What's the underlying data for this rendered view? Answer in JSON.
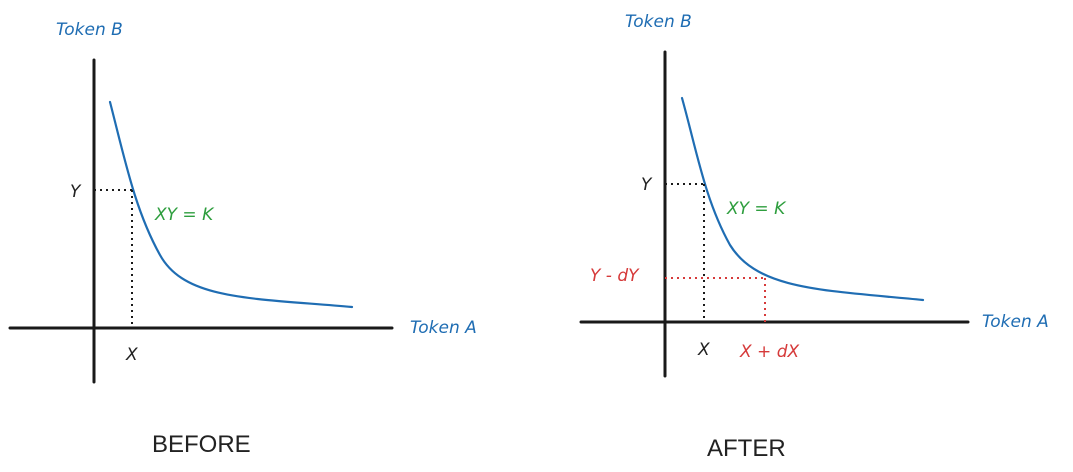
{
  "colors": {
    "axis": "#1a1a1a",
    "curve": "#1f6db3",
    "label_blue": "#1f6db3",
    "label_green": "#2e9e3e",
    "label_red": "#d63a3a",
    "text": "#222222"
  },
  "before": {
    "y_axis_label": "Token B",
    "x_axis_label": "Token A",
    "y_point_label": "Y",
    "x_point_label": "X",
    "curve_label": "XY = K",
    "caption": "BEFORE"
  },
  "after": {
    "y_axis_label": "Token B",
    "x_axis_label": "Token A",
    "y_point_label": "Y",
    "x_point_label": "X",
    "curve_label": "XY = K",
    "y_new_label": "Y - dY",
    "x_new_label": "X + dX",
    "caption": "AFTER"
  }
}
